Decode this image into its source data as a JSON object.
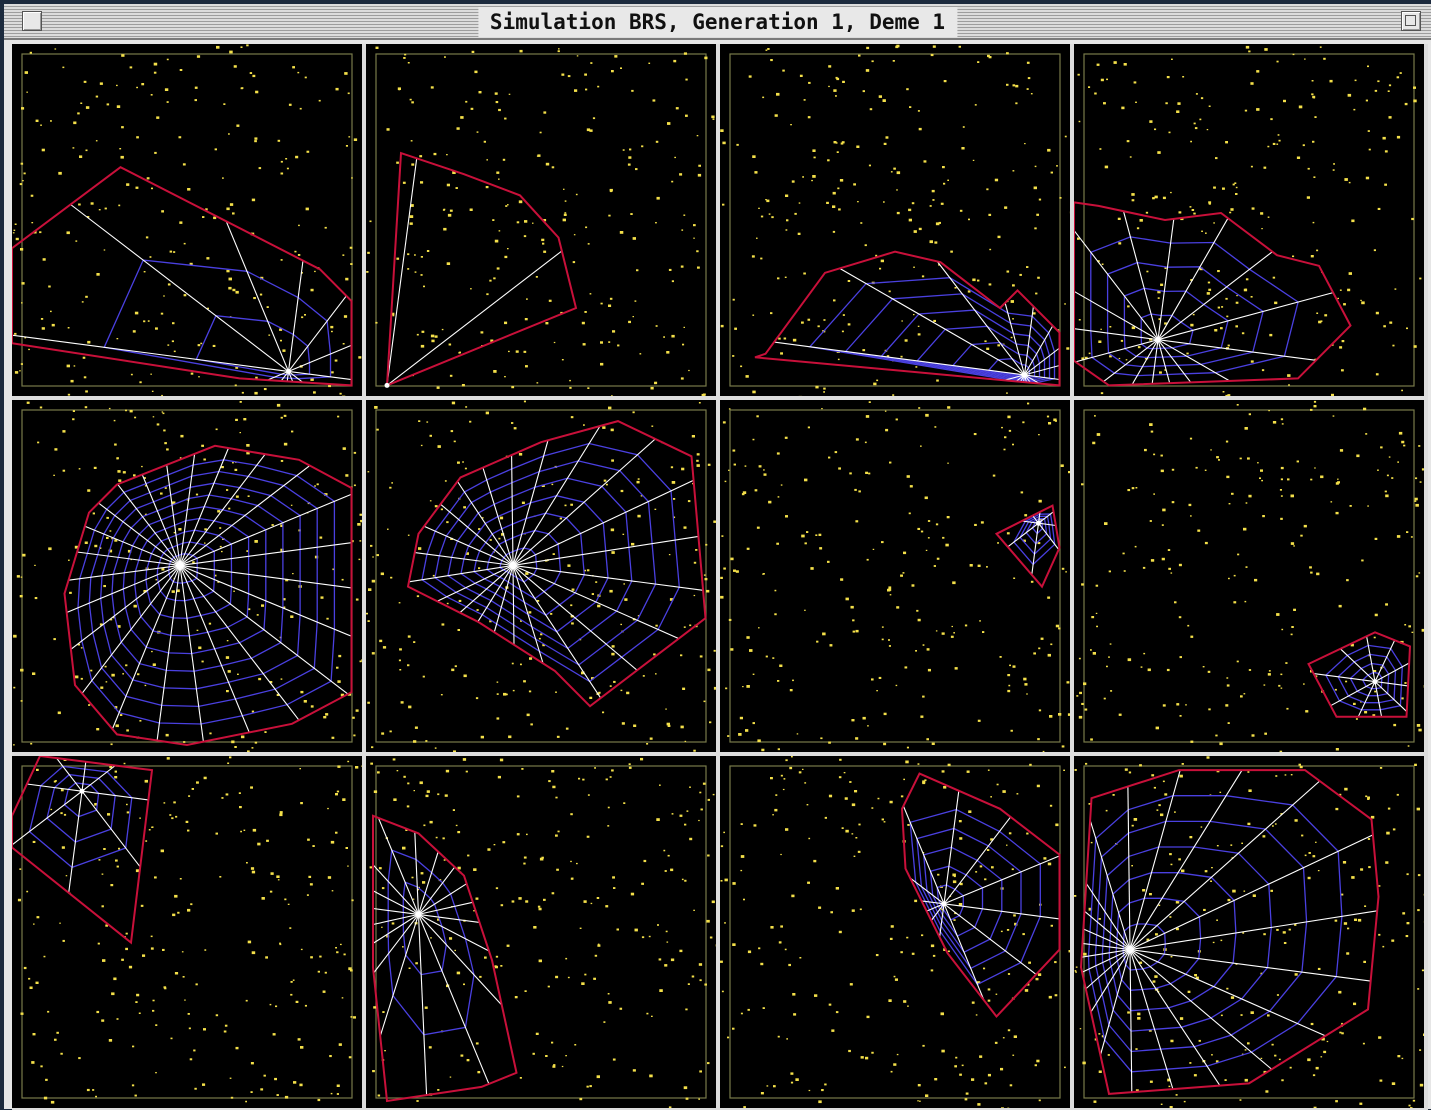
{
  "window": {
    "title": "Simulation BRS, Generation 1, Deme 1"
  },
  "colors": {
    "prey": "#f4e04a",
    "web_frame": "#c8103a",
    "web_radius": "#ffffff",
    "web_spiral": "#4a40e0",
    "arena_border": "#777a4a",
    "panel_bg": "#000000"
  },
  "panels_layout": {
    "rows": 3,
    "cols": 4
  },
  "panels": [
    {
      "id": 1,
      "hub": [
        0.79,
        0.93
      ],
      "frame": [
        [
          0.0,
          0.58
        ],
        [
          0.31,
          0.35
        ],
        [
          0.88,
          0.64
        ],
        [
          0.97,
          0.73
        ],
        [
          0.97,
          0.97
        ],
        [
          0.65,
          0.95
        ],
        [
          0.0,
          0.85
        ]
      ],
      "spokes": 12,
      "spirals": 2
    },
    {
      "id": 2,
      "hub": [
        0.06,
        0.97
      ],
      "frame": [
        [
          0.06,
          0.97
        ],
        [
          0.1,
          0.31
        ],
        [
          0.28,
          0.37
        ],
        [
          0.44,
          0.43
        ],
        [
          0.55,
          0.55
        ],
        [
          0.6,
          0.75
        ]
      ],
      "spokes": 8,
      "spirals": 1
    },
    {
      "id": 3,
      "hub": [
        0.87,
        0.94
      ],
      "frame": [
        [
          0.13,
          0.88
        ],
        [
          0.3,
          0.65
        ],
        [
          0.5,
          0.59
        ],
        [
          0.63,
          0.62
        ],
        [
          0.8,
          0.75
        ],
        [
          0.85,
          0.7
        ],
        [
          0.97,
          0.82
        ],
        [
          0.97,
          0.97
        ],
        [
          0.1,
          0.89
        ]
      ],
      "spokes": 16,
      "spirals": 6
    },
    {
      "id": 4,
      "hub": [
        0.24,
        0.84
      ],
      "frame": [
        [
          0.0,
          0.45
        ],
        [
          0.07,
          0.46
        ],
        [
          0.26,
          0.5
        ],
        [
          0.42,
          0.48
        ],
        [
          0.58,
          0.6
        ],
        [
          0.7,
          0.63
        ],
        [
          0.79,
          0.8
        ],
        [
          0.64,
          0.95
        ],
        [
          0.1,
          0.97
        ],
        [
          0.0,
          0.9
        ]
      ],
      "spokes": 16,
      "spirals": 4
    },
    {
      "id": 5,
      "hub": [
        0.48,
        0.47
      ],
      "frame": [
        [
          0.3,
          0.24
        ],
        [
          0.58,
          0.13
        ],
        [
          0.82,
          0.17
        ],
        [
          0.97,
          0.25
        ],
        [
          0.97,
          0.83
        ],
        [
          0.8,
          0.92
        ],
        [
          0.5,
          0.98
        ],
        [
          0.3,
          0.95
        ],
        [
          0.18,
          0.81
        ],
        [
          0.15,
          0.55
        ],
        [
          0.22,
          0.32
        ]
      ],
      "spokes": 24,
      "spirals": 9
    },
    {
      "id": 6,
      "hub": [
        0.42,
        0.47
      ],
      "frame": [
        [
          0.27,
          0.22
        ],
        [
          0.5,
          0.12
        ],
        [
          0.72,
          0.06
        ],
        [
          0.93,
          0.16
        ],
        [
          0.97,
          0.62
        ],
        [
          0.64,
          0.87
        ],
        [
          0.54,
          0.77
        ],
        [
          0.32,
          0.63
        ],
        [
          0.12,
          0.53
        ],
        [
          0.15,
          0.38
        ]
      ],
      "spokes": 22,
      "spirals": 7
    },
    {
      "id": 7,
      "hub": [
        0.91,
        0.35
      ],
      "frame": [
        [
          0.79,
          0.38
        ],
        [
          0.95,
          0.3
        ],
        [
          0.97,
          0.42
        ],
        [
          0.92,
          0.53
        ]
      ],
      "spokes": 8,
      "spirals": 4
    },
    {
      "id": 8,
      "hub": [
        0.86,
        0.8
      ],
      "frame": [
        [
          0.67,
          0.75
        ],
        [
          0.86,
          0.66
        ],
        [
          0.96,
          0.7
        ],
        [
          0.95,
          0.9
        ],
        [
          0.75,
          0.9
        ]
      ],
      "spokes": 10,
      "spirals": 4
    },
    {
      "id": 9,
      "hub": [
        0.2,
        0.1
      ],
      "frame": [
        [
          0.0,
          0.17
        ],
        [
          0.08,
          0.0
        ],
        [
          0.4,
          0.04
        ],
        [
          0.34,
          0.53
        ],
        [
          0.0,
          0.26
        ]
      ],
      "spokes": 8,
      "spirals": 3
    },
    {
      "id": 10,
      "hub": [
        0.15,
        0.45
      ],
      "frame": [
        [
          0.02,
          0.17
        ],
        [
          0.15,
          0.22
        ],
        [
          0.28,
          0.34
        ],
        [
          0.36,
          0.58
        ],
        [
          0.43,
          0.9
        ],
        [
          0.33,
          0.94
        ],
        [
          0.06,
          0.98
        ],
        [
          0.02,
          0.6
        ]
      ],
      "spokes": 18,
      "spirals": 2
    },
    {
      "id": 11,
      "hub": [
        0.64,
        0.42
      ],
      "frame": [
        [
          0.57,
          0.05
        ],
        [
          0.8,
          0.15
        ],
        [
          0.97,
          0.28
        ],
        [
          0.97,
          0.55
        ],
        [
          0.79,
          0.74
        ],
        [
          0.65,
          0.56
        ],
        [
          0.53,
          0.32
        ],
        [
          0.52,
          0.15
        ]
      ],
      "spokes": 12,
      "spirals": 5
    },
    {
      "id": 12,
      "hub": [
        0.16,
        0.55
      ],
      "frame": [
        [
          0.05,
          0.12
        ],
        [
          0.3,
          0.04
        ],
        [
          0.66,
          0.04
        ],
        [
          0.85,
          0.18
        ],
        [
          0.87,
          0.4
        ],
        [
          0.84,
          0.72
        ],
        [
          0.5,
          0.93
        ],
        [
          0.1,
          0.96
        ],
        [
          0.02,
          0.6
        ]
      ],
      "spokes": 22,
      "spirals": 6
    }
  ]
}
